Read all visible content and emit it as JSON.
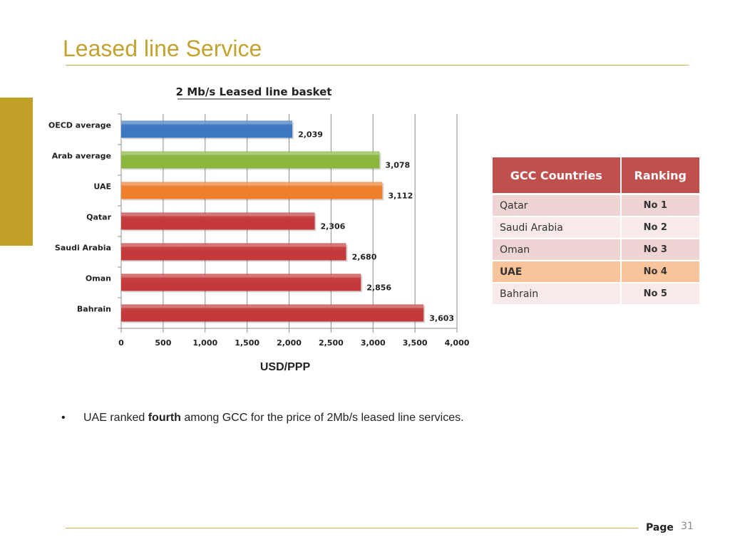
{
  "slide": {
    "title": "Leased line Service",
    "page_label": "Page",
    "page_number": "31"
  },
  "chart_data": {
    "type": "bar",
    "orientation": "horizontal",
    "title": "2 Mb/s Leased line basket",
    "xlabel": "USD/PPP",
    "ylabel": "",
    "xlim": [
      0,
      4000
    ],
    "xticks": [
      "0",
      "500",
      "1,000",
      "1,500",
      "2,000",
      "2,500",
      "3,000",
      "3,500",
      "4,000"
    ],
    "grid": true,
    "categories": [
      "OECD average",
      "Arab average",
      "UAE",
      "Qatar",
      "Saudi Arabia",
      "Oman",
      "Bahrain"
    ],
    "values": [
      2039,
      3078,
      3112,
      2306,
      2680,
      2856,
      3603
    ],
    "value_labels": [
      "2,039",
      "3,078",
      "3,112",
      "2,306",
      "2,680",
      "2,856",
      "3,603"
    ],
    "colors": [
      "#3d76c2",
      "#8ab63e",
      "#ee7f2c",
      "#c4393a",
      "#c4393a",
      "#c4393a",
      "#c4393a"
    ]
  },
  "table": {
    "headers": [
      "GCC Countries",
      "Ranking"
    ],
    "rows": [
      {
        "country": "Qatar",
        "rank": "No 1"
      },
      {
        "country": "Saudi Arabia",
        "rank": "No 2"
      },
      {
        "country": "Oman",
        "rank": "No 3"
      },
      {
        "country": "UAE",
        "rank": "No 4"
      },
      {
        "country": "Bahrain",
        "rank": "No 5"
      }
    ],
    "highlight_color": "#f8c49a",
    "header_color": "#c0504d"
  },
  "bullet": {
    "marker": "•",
    "prefix": "UAE ranked ",
    "emphasis": "fourth",
    "suffix": " among GCC for the price of 2Mb/s leased line services."
  }
}
